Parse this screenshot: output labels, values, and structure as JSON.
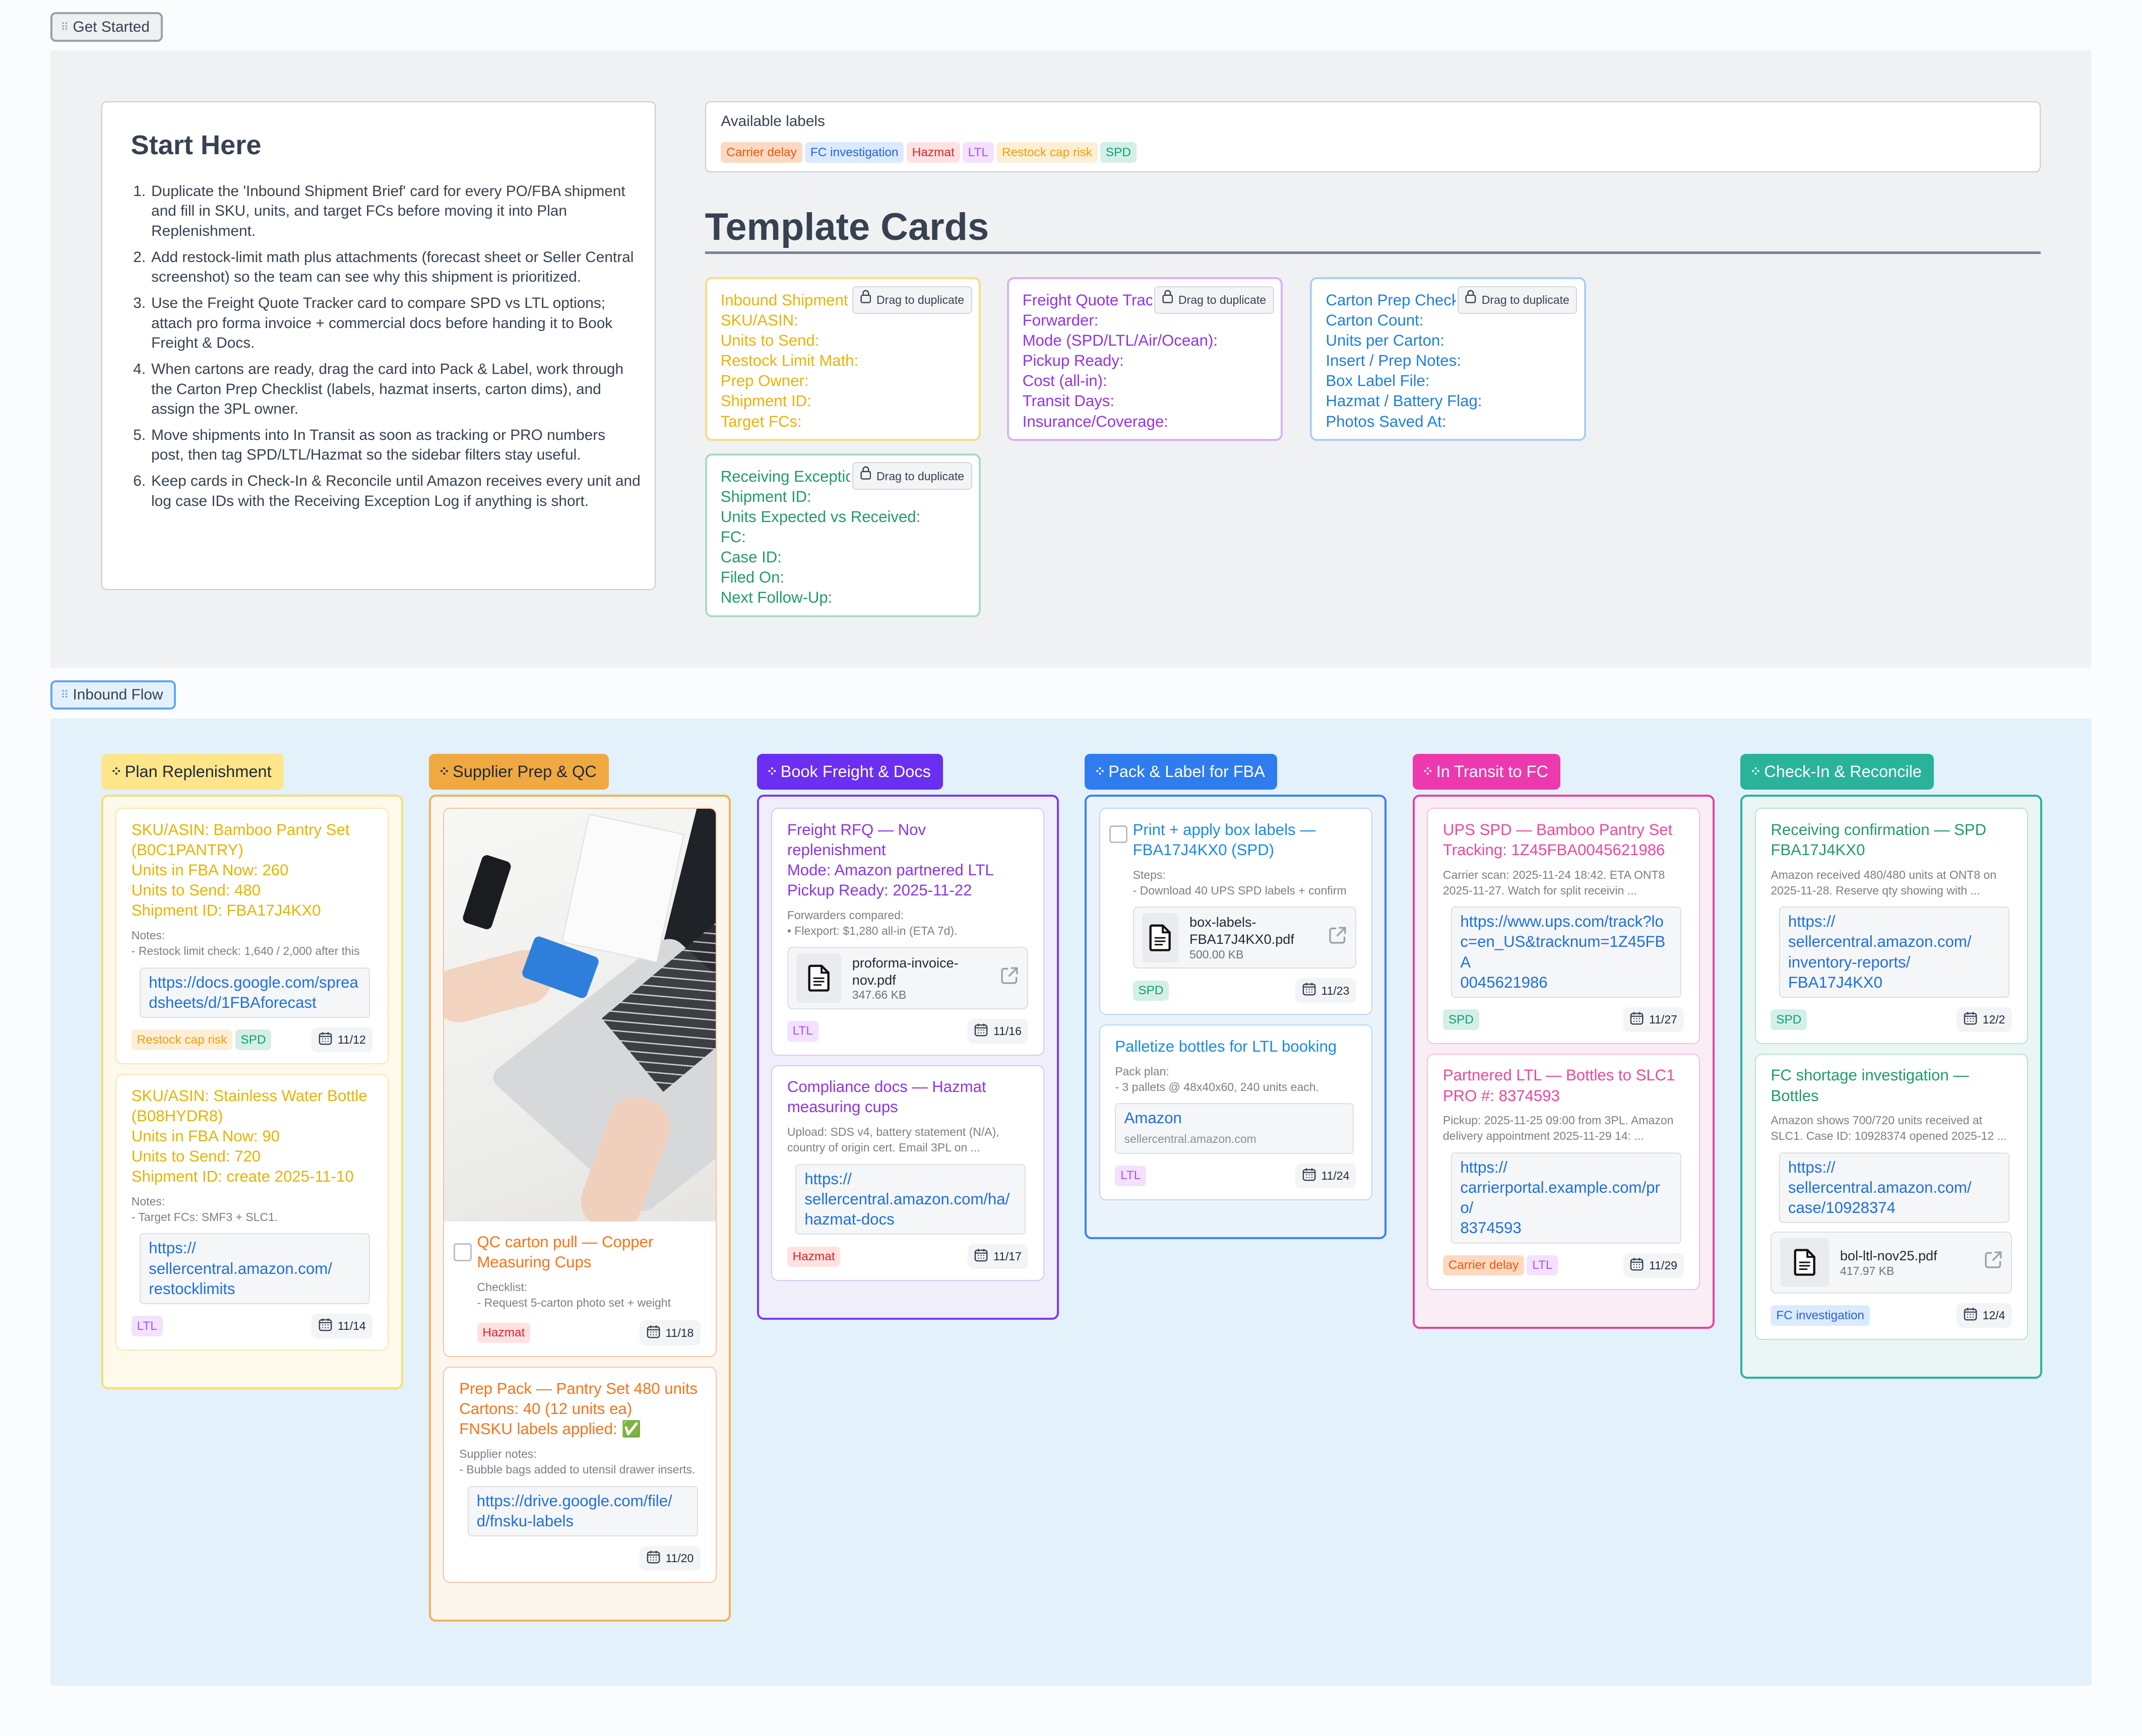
{
  "sections": {
    "get_started": "Get Started",
    "inbound_flow": "Inbound Flow"
  },
  "start_here": {
    "title": "Start Here",
    "steps": [
      "Duplicate the 'Inbound Shipment Brief' card for every PO/FBA shipment and fill in SKU, units, and target FCs before moving it into Plan Replenishment.",
      "Add restock-limit math plus attachments (forecast sheet or Seller Central screenshot) so the team can see why this shipment is prioritized.",
      "Use the Freight Quote Tracker card to compare SPD vs LTL options; attach pro forma invoice + commercial docs before handing it to Book Freight & Docs.",
      "When cartons are ready, drag the card into Pack & Label, work through the Carton Prep Checklist (labels, hazmat inserts, carton dims), and assign the 3PL owner.",
      "Move shipments into In Transit as soon as tracking or PRO numbers post, then tag SPD/LTL/Hazmat so the sidebar filters stay useful.",
      "Keep cards in Check-In & Reconcile until Amazon receives every unit and log case IDs with the Receiving Exception Log if anything is short."
    ]
  },
  "available_labels": {
    "title": "Available labels",
    "labels": [
      "Carrier delay",
      "FC investigation",
      "Hazmat",
      "LTL",
      "Restock cap risk",
      "SPD"
    ]
  },
  "label_colors": {
    "Carrier delay": {
      "bg": "#fdd9c2",
      "fg": "#ea580c"
    },
    "FC investigation": {
      "bg": "#dbeafe",
      "fg": "#2563eb"
    },
    "Hazmat": {
      "bg": "#fee2e2",
      "fg": "#dc2626"
    },
    "LTL": {
      "bg": "#f3e1fd",
      "fg": "#a855f7"
    },
    "Restock cap risk": {
      "bg": "#fdefd6",
      "fg": "#f59e0b"
    },
    "SPD": {
      "bg": "#d3efe6",
      "fg": "#0f9f7a"
    }
  },
  "template_cards": {
    "title": "Template Cards",
    "drag_label": "Drag to duplicate",
    "cards": [
      {
        "color": "#eab308",
        "border": "#f8dc86",
        "lines": [
          "Inbound Shipment Brief",
          "SKU/ASIN:",
          "Units to Send:",
          "Restock Limit Math:",
          "Prep Owner:",
          "Shipment ID:",
          "Target FCs:"
        ]
      },
      {
        "color": "#9333ea",
        "border": "#d2b4f6",
        "lines": [
          "Freight Quote Tracker",
          "Forwarder:",
          "Mode (SPD/LTL/Air/Ocean):",
          "Pickup Ready:",
          "Cost (all-in):",
          "Transit Days:",
          "Insurance/Coverage:"
        ]
      },
      {
        "color": "#1d7fe0",
        "border": "#a9d0f5",
        "lines": [
          "Carton Prep Checklist",
          "Carton Count:",
          "Units per Carton:",
          "Insert / Prep Notes:",
          "Box Label File:",
          "Hazmat / Battery Flag:",
          "Photos Saved At:"
        ]
      },
      {
        "color": "#1f9d63",
        "border": "#a8dcc6",
        "lines": [
          "Receiving Exception Log",
          "Shipment ID:",
          "Units Expected vs Received:",
          "FC:",
          "Case ID:",
          "Filed On:",
          "Next Follow-Up:"
        ]
      }
    ]
  },
  "columns": [
    {
      "name": "Plan Replenishment",
      "header_bg": "#fde58a",
      "header_fg": "#1f2937",
      "box_border": "#fbdc7a",
      "box_bg": "#fefaeb",
      "card_border": "#fae6a6",
      "title_color": "#e6b400",
      "cards": [
        {
          "title": [
            "SKU/ASIN: Bamboo Pantry Set (B0C1PANTRY)",
            "Units in FBA Now: 260",
            "Units to Send: 480",
            "Shipment ID: FBA17J4KX0"
          ],
          "notes": [
            "Notes:",
            "- Restock limit check: 1,640 / 2,000 after this"
          ],
          "link": "https://docs.google.com/spreadsheets/d/1FBAforecast",
          "labels": [
            "Restock cap risk",
            "SPD"
          ],
          "date": "11/12"
        },
        {
          "title": [
            "SKU/ASIN: Stainless Water Bottle (B08HYDR8)",
            "Units in FBA Now: 90",
            "Units to Send: 720",
            "Shipment ID: create 2025-11-10"
          ],
          "notes": [
            "Notes:",
            "- Target FCs: SMF3 + SLC1."
          ],
          "link": "https://://sellercentral.amazon.com/restocklimits",
          "link_lines": [
            "https://",
            "sellercentral.amazon.com/",
            "restocklimits"
          ],
          "labels": [
            "LTL"
          ],
          "date": "11/14"
        }
      ]
    },
    {
      "name": "Supplier Prep & QC",
      "header_bg": "#f0a840",
      "header_fg": "#1f2937",
      "box_border": "#f0b25a",
      "box_bg": "#fcf6ef",
      "card_border": "#f9c3a4",
      "title_color": "#f97316",
      "cards": [
        {
          "image": true,
          "checkbox": true,
          "title": [
            "QC carton pull — Copper Measuring Cups"
          ],
          "notes": [
            "Checklist:",
            "- Request 5-carton photo set + weight"
          ],
          "labels": [
            "Hazmat"
          ],
          "date": "11/18"
        },
        {
          "title": [
            "Prep Pack — Pantry Set 480 units",
            "Cartons: 40 (12 units ea)",
            "FNSKU labels applied: ✅"
          ],
          "notes": [
            "Supplier notes:",
            "- Bubble bags added to utensil drawer inserts."
          ],
          "link_lines": [
            "https://drive.google.com/file/",
            "d/fnsku-labels"
          ],
          "labels": [],
          "date": "11/20"
        }
      ]
    },
    {
      "name": "Book Freight & Docs",
      "header_bg": "#6a2ff0",
      "header_fg": "#ffffff",
      "box_border": "#7c3aed",
      "box_bg": "#f1eefc",
      "card_border": "#d9c6f7",
      "title_color": "#8b35e8",
      "cards": [
        {
          "title": [
            "Freight RFQ — Nov replenishment",
            "Mode: Amazon partnered LTL",
            "Pickup Ready: 2025-11-22"
          ],
          "notes": [
            "Forwarders compared:",
            "• Flexport: $1,280 all-in (ETA 7d)."
          ],
          "file": {
            "name": "proforma-invoice-nov.pdf",
            "size": "347.66 KB"
          },
          "labels": [
            "LTL"
          ],
          "date": "11/16"
        },
        {
          "title": [
            "Compliance docs — Hazmat measuring cups"
          ],
          "notes": [
            "Upload: SDS v4, battery statement (N/A), country of origin cert. Email 3PL on ..."
          ],
          "link_lines": [
            "https://",
            "sellercentral.amazon.com/ha/",
            "hazmat-docs"
          ],
          "labels": [
            "Hazmat"
          ],
          "date": "11/17"
        }
      ]
    },
    {
      "name": "Pack & Label for FBA",
      "header_bg": "#2f7cef",
      "header_fg": "#ffffff",
      "box_border": "#3b82f6",
      "box_bg": "#eaf3fc",
      "card_border": "#b9d6f6",
      "title_color": "#1a8ae6",
      "cards": [
        {
          "checkbox": true,
          "title": [
            "Print + apply box labels — FBA17J4KX0 (SPD)"
          ],
          "notes": [
            "Steps:",
            "- Download 40 UPS SPD labels + confirm"
          ],
          "file": {
            "name": "box-labels-FBA17J4KX0.pdf",
            "size": "500.00 KB"
          },
          "labels": [
            "SPD"
          ],
          "date": "11/23"
        },
        {
          "title": [
            "Palletize bottles for LTL booking"
          ],
          "notes": [
            "Pack plan:",
            "- 3 pallets @ 48x40x60, 240 units each."
          ],
          "link_card": {
            "title": "Amazon",
            "sub": "sellercentral.amazon.com"
          },
          "labels": [
            "LTL"
          ],
          "date": "11/24"
        }
      ]
    },
    {
      "name": "In Transit to FC",
      "header_bg": "#ec3aae",
      "header_fg": "#ffffff",
      "box_border": "#e6439f",
      "box_bg": "#faedf6",
      "card_border": "#f5bfdf",
      "title_color": "#ec4899",
      "cards": [
        {
          "title": [
            "UPS SPD — Bamboo Pantry Set",
            "Tracking: 1Z45FBA0045621986"
          ],
          "notes": [
            "Carrier scan: 2025-11-24 18:42. ETA ONT8 2025-11-27. Watch for split receivin ..."
          ],
          "link_lines": [
            "https://www.ups.com/track?lo",
            "c=en_US&tracknum=1Z45FBA",
            "0045621986"
          ],
          "labels": [
            "SPD"
          ],
          "date": "11/27"
        },
        {
          "title": [
            "Partnered LTL — Bottles to SLC1",
            "PRO #: 8374593"
          ],
          "notes": [
            "Pickup: 2025-11-25 09:00 from 3PL. Amazon delivery appointment 2025-11-29 14: ..."
          ],
          "link_lines": [
            "https://",
            "carrierportal.example.com/pro/",
            "8374593"
          ],
          "labels": [
            "Carrier delay",
            "LTL"
          ],
          "date": "11/29"
        }
      ]
    },
    {
      "name": "Check-In & Reconcile",
      "header_bg": "#2ab39b",
      "header_fg": "#ffffff",
      "box_border": "#2ab39b",
      "box_bg": "#ebf5f3",
      "card_border": "#b5e2d6",
      "title_color": "#1f9d63",
      "cards": [
        {
          "title": [
            "Receiving confirmation — SPD FBA17J4KX0"
          ],
          "notes": [
            "Amazon received 480/480 units at ONT8 on 2025-11-28. Reserve qty showing with ..."
          ],
          "link_lines": [
            "https://",
            "sellercentral.amazon.com/",
            "inventory-reports/",
            "FBA17J4KX0"
          ],
          "labels": [
            "SPD"
          ],
          "date": "12/2"
        },
        {
          "title": [
            "FC shortage investigation — Bottles"
          ],
          "notes": [
            "Amazon shows 700/720 units received at SLC1. Case ID: 10928374 opened 2025-12 ..."
          ],
          "link_lines": [
            "https://",
            "sellercentral.amazon.com/",
            "case/10928374"
          ],
          "file": {
            "name": "bol-ltl-nov25.pdf",
            "size": "417.97 KB"
          },
          "labels": [
            "FC investigation"
          ],
          "date": "12/4"
        }
      ]
    }
  ]
}
